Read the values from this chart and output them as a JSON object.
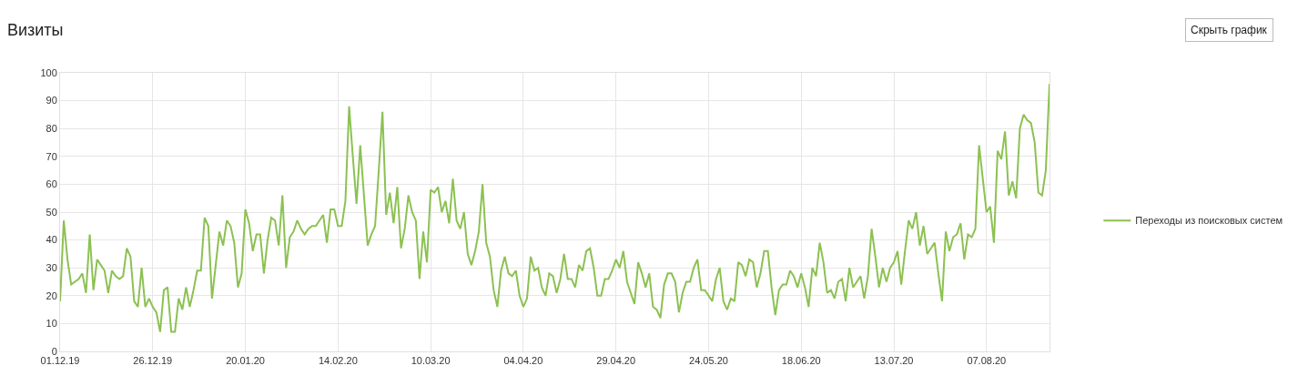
{
  "chart_data": {
    "type": "line",
    "title": "Визиты",
    "annotations": [
      "Скрыть график"
    ],
    "x": [
      "2019-12-01",
      "2019-12-02",
      "2019-12-03",
      "2019-12-04",
      "2019-12-05",
      "2019-12-06",
      "2019-12-07",
      "2019-12-08",
      "2019-12-09",
      "2019-12-10",
      "2019-12-11",
      "2019-12-12",
      "2019-12-13",
      "2019-12-14",
      "2019-12-15",
      "2019-12-16",
      "2019-12-17",
      "2019-12-18",
      "2019-12-19",
      "2019-12-20",
      "2019-12-21",
      "2019-12-22",
      "2019-12-23",
      "2019-12-24",
      "2019-12-25",
      "2019-12-26",
      "2019-12-27",
      "2019-12-28",
      "2019-12-29",
      "2019-12-30",
      "2019-12-31",
      "2020-01-01",
      "2020-01-02",
      "2020-01-03",
      "2020-01-04",
      "2020-01-05",
      "2020-01-06",
      "2020-01-07",
      "2020-01-08",
      "2020-01-09",
      "2020-01-10",
      "2020-01-11",
      "2020-01-12",
      "2020-01-13",
      "2020-01-14",
      "2020-01-15",
      "2020-01-16",
      "2020-01-17",
      "2020-01-18",
      "2020-01-19",
      "2020-01-20",
      "2020-01-21",
      "2020-01-22",
      "2020-01-23",
      "2020-01-24",
      "2020-01-25",
      "2020-01-26",
      "2020-01-27",
      "2020-01-28",
      "2020-01-29",
      "2020-01-30",
      "2020-01-31",
      "2020-02-01",
      "2020-02-02",
      "2020-02-03",
      "2020-02-04",
      "2020-02-05",
      "2020-02-06",
      "2020-02-07",
      "2020-02-08",
      "2020-02-09",
      "2020-02-10",
      "2020-02-11",
      "2020-02-12",
      "2020-02-13",
      "2020-02-14",
      "2020-02-15",
      "2020-02-16",
      "2020-02-17",
      "2020-02-18",
      "2020-02-19",
      "2020-02-20",
      "2020-02-21",
      "2020-02-22",
      "2020-02-23",
      "2020-02-24",
      "2020-02-25",
      "2020-02-26",
      "2020-02-27",
      "2020-02-28",
      "2020-02-29",
      "2020-03-01",
      "2020-03-02",
      "2020-03-03",
      "2020-03-04",
      "2020-03-05",
      "2020-03-06",
      "2020-03-07",
      "2020-03-08",
      "2020-03-09",
      "2020-03-10",
      "2020-03-11",
      "2020-03-12",
      "2020-03-13",
      "2020-03-14",
      "2020-03-15",
      "2020-03-16",
      "2020-03-17",
      "2020-03-18",
      "2020-03-19",
      "2020-03-20",
      "2020-03-21",
      "2020-03-22",
      "2020-03-23",
      "2020-03-24",
      "2020-03-25",
      "2020-03-26",
      "2020-03-27",
      "2020-03-28",
      "2020-03-29",
      "2020-03-30",
      "2020-03-31",
      "2020-04-01",
      "2020-04-02",
      "2020-04-03",
      "2020-04-04",
      "2020-04-05",
      "2020-04-06",
      "2020-04-07",
      "2020-04-08",
      "2020-04-09",
      "2020-04-10",
      "2020-04-11",
      "2020-04-12",
      "2020-04-13",
      "2020-04-14",
      "2020-04-15",
      "2020-04-16",
      "2020-04-17",
      "2020-04-18",
      "2020-04-19",
      "2020-04-20",
      "2020-04-21",
      "2020-04-22",
      "2020-04-23",
      "2020-04-24",
      "2020-04-25",
      "2020-04-26",
      "2020-04-27",
      "2020-04-28",
      "2020-04-29",
      "2020-04-30",
      "2020-05-01",
      "2020-05-02",
      "2020-05-03",
      "2020-05-04",
      "2020-05-05",
      "2020-05-06",
      "2020-05-07",
      "2020-05-08",
      "2020-05-09",
      "2020-05-10",
      "2020-05-11",
      "2020-05-12",
      "2020-05-13",
      "2020-05-14",
      "2020-05-15",
      "2020-05-16",
      "2020-05-17",
      "2020-05-18",
      "2020-05-19",
      "2020-05-20",
      "2020-05-21",
      "2020-05-22",
      "2020-05-23",
      "2020-05-24",
      "2020-05-25",
      "2020-05-26",
      "2020-05-27",
      "2020-05-28",
      "2020-05-29",
      "2020-05-30",
      "2020-05-31",
      "2020-06-01",
      "2020-06-02",
      "2020-06-03",
      "2020-06-04",
      "2020-06-05",
      "2020-06-06",
      "2020-06-07",
      "2020-06-08",
      "2020-06-09",
      "2020-06-10",
      "2020-06-11",
      "2020-06-12",
      "2020-06-13",
      "2020-06-14",
      "2020-06-15",
      "2020-06-16",
      "2020-06-17",
      "2020-06-18",
      "2020-06-19",
      "2020-06-20",
      "2020-06-21",
      "2020-06-22",
      "2020-06-23",
      "2020-06-24",
      "2020-06-25",
      "2020-06-26",
      "2020-06-27",
      "2020-06-28",
      "2020-06-29",
      "2020-06-30",
      "2020-07-01",
      "2020-07-02",
      "2020-07-03",
      "2020-07-04",
      "2020-07-05",
      "2020-07-06",
      "2020-07-07",
      "2020-07-08",
      "2020-07-09",
      "2020-07-10",
      "2020-07-11",
      "2020-07-12",
      "2020-07-13",
      "2020-07-14",
      "2020-07-15",
      "2020-07-16",
      "2020-07-17",
      "2020-07-18",
      "2020-07-19",
      "2020-07-20",
      "2020-07-21",
      "2020-07-22",
      "2020-07-23",
      "2020-07-24",
      "2020-07-25",
      "2020-07-26",
      "2020-07-27",
      "2020-07-28",
      "2020-07-29",
      "2020-07-30",
      "2020-07-31",
      "2020-08-01",
      "2020-08-02",
      "2020-08-03",
      "2020-08-04",
      "2020-08-05",
      "2020-08-06",
      "2020-08-07",
      "2020-08-08",
      "2020-08-09",
      "2020-08-10",
      "2020-08-11",
      "2020-08-12",
      "2020-08-13",
      "2020-08-14",
      "2020-08-15",
      "2020-08-16",
      "2020-08-17",
      "2020-08-18",
      "2020-08-19",
      "2020-08-20",
      "2020-08-21",
      "2020-08-22",
      "2020-08-23",
      "2020-08-24"
    ],
    "series": [
      {
        "name": "Переходы из поисковых систем",
        "color": "#8cc152",
        "values": [
          18,
          47,
          33,
          24,
          25,
          26,
          28,
          21,
          42,
          22,
          33,
          31,
          29,
          21,
          29,
          27,
          26,
          27,
          37,
          34,
          18,
          16,
          30,
          16,
          19,
          16,
          14,
          7,
          22,
          23,
          7,
          7,
          19,
          15,
          23,
          16,
          22,
          29,
          29,
          48,
          45,
          19,
          31,
          43,
          38,
          47,
          45,
          39,
          23,
          28,
          51,
          46,
          36,
          42,
          42,
          28,
          40,
          48,
          47,
          38,
          56,
          30,
          41,
          43,
          47,
          44,
          42,
          44,
          45,
          45,
          47,
          49,
          39,
          51,
          51,
          45,
          45,
          54,
          88,
          70,
          53,
          74,
          56,
          38,
          42,
          45,
          65,
          86,
          49,
          57,
          46,
          59,
          37,
          44,
          56,
          50,
          47,
          26,
          43,
          32,
          58,
          57,
          59,
          50,
          54,
          46,
          62,
          47,
          44,
          50,
          35,
          31,
          36,
          43,
          60,
          39,
          34,
          22,
          16,
          29,
          34,
          28,
          27,
          29,
          20,
          16,
          19,
          34,
          29,
          30,
          23,
          20,
          28,
          27,
          21,
          26,
          35,
          26,
          26,
          23,
          31,
          29,
          36,
          37,
          30,
          20,
          20,
          26,
          26,
          29,
          33,
          30,
          36,
          25,
          21,
          17,
          32,
          28,
          23,
          28,
          16,
          15,
          12,
          24,
          28,
          28,
          25,
          14,
          21,
          25,
          25,
          30,
          33,
          22,
          22,
          20,
          18,
          26,
          30,
          18,
          15,
          19,
          18,
          32,
          31,
          27,
          33,
          32,
          23,
          28,
          36,
          36,
          23,
          13,
          22,
          24,
          24,
          29,
          27,
          23,
          28,
          23,
          16,
          30,
          27,
          39,
          32,
          21,
          22,
          19,
          25,
          26,
          18,
          30,
          23,
          25,
          27,
          19,
          27,
          44,
          34,
          23,
          30,
          25,
          30,
          32,
          36,
          24,
          36,
          47,
          44,
          50,
          38,
          45,
          35,
          37,
          39,
          28,
          18,
          43,
          36,
          41,
          42,
          46,
          33,
          42,
          41,
          44,
          74,
          62,
          50,
          52,
          39,
          72,
          69,
          79,
          56,
          61,
          55,
          80,
          85,
          83,
          82,
          75,
          57,
          56,
          65,
          96
        ]
      }
    ],
    "xlim": [
      "2019-12-01",
      "2020-08-24"
    ],
    "xticks": [
      {
        "value": "2019-12-01",
        "label": "01.12.19"
      },
      {
        "value": "2019-12-26",
        "label": "26.12.19"
      },
      {
        "value": "2020-01-20",
        "label": "20.01.20"
      },
      {
        "value": "2020-02-14",
        "label": "14.02.20"
      },
      {
        "value": "2020-03-10",
        "label": "10.03.20"
      },
      {
        "value": "2020-04-04",
        "label": "04.04.20"
      },
      {
        "value": "2020-04-29",
        "label": "29.04.20"
      },
      {
        "value": "2020-05-24",
        "label": "24.05.20"
      },
      {
        "value": "2020-06-18",
        "label": "18.06.20"
      },
      {
        "value": "2020-07-13",
        "label": "13.07.20"
      },
      {
        "value": "2020-08-07",
        "label": "07.08.20"
      }
    ],
    "ylim": [
      0,
      100
    ],
    "yticks": [
      0,
      10,
      20,
      30,
      40,
      50,
      60,
      70,
      80,
      90,
      100
    ],
    "grid": true,
    "legend": "right",
    "marker": "none",
    "line_style": "solid"
  }
}
